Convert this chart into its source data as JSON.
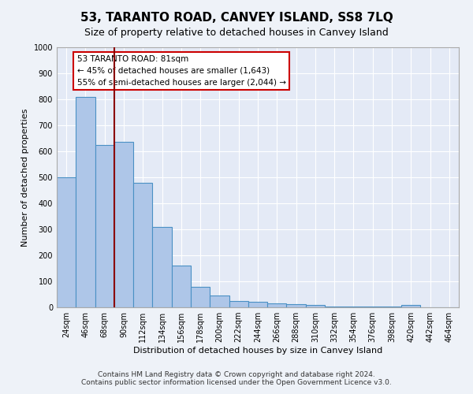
{
  "title": "53, TARANTO ROAD, CANVEY ISLAND, SS8 7LQ",
  "subtitle": "Size of property relative to detached houses in Canvey Island",
  "xlabel": "Distribution of detached houses by size in Canvey Island",
  "ylabel": "Number of detached properties",
  "footer_line1": "Contains HM Land Registry data © Crown copyright and database right 2024.",
  "footer_line2": "Contains public sector information licensed under the Open Government Licence v3.0.",
  "annotation_line1": "53 TARANTO ROAD: 81sqm",
  "annotation_line2": "← 45% of detached houses are smaller (1,643)",
  "annotation_line3": "55% of semi-detached houses are larger (2,044) →",
  "bar_color": "#aec6e8",
  "bar_edge_color": "#4a90c4",
  "vline_color": "#8b0000",
  "categories": [
    "24sqm",
    "46sqm",
    "68sqm",
    "90sqm",
    "112sqm",
    "134sqm",
    "156sqm",
    "178sqm",
    "200sqm",
    "222sqm",
    "244sqm",
    "266sqm",
    "288sqm",
    "310sqm",
    "332sqm",
    "354sqm",
    "376sqm",
    "398sqm",
    "420sqm",
    "442sqm",
    "464sqm"
  ],
  "values": [
    500,
    810,
    625,
    635,
    480,
    310,
    160,
    80,
    45,
    25,
    20,
    15,
    12,
    8,
    4,
    3,
    3,
    2,
    8,
    0,
    0
  ],
  "ylim": [
    0,
    1000
  ],
  "yticks": [
    0,
    100,
    200,
    300,
    400,
    500,
    600,
    700,
    800,
    900,
    1000
  ],
  "figsize": [
    6.0,
    5.0
  ],
  "dpi": 100,
  "bg_color": "#eef2f8",
  "plot_bg_color": "#e4eaf6",
  "annotation_box_color": "white",
  "annotation_box_edge_color": "#cc0000",
  "title_fontsize": 11,
  "subtitle_fontsize": 9,
  "axis_label_fontsize": 8,
  "tick_fontsize": 7,
  "annotation_fontsize": 7.5,
  "footer_fontsize": 6.5
}
